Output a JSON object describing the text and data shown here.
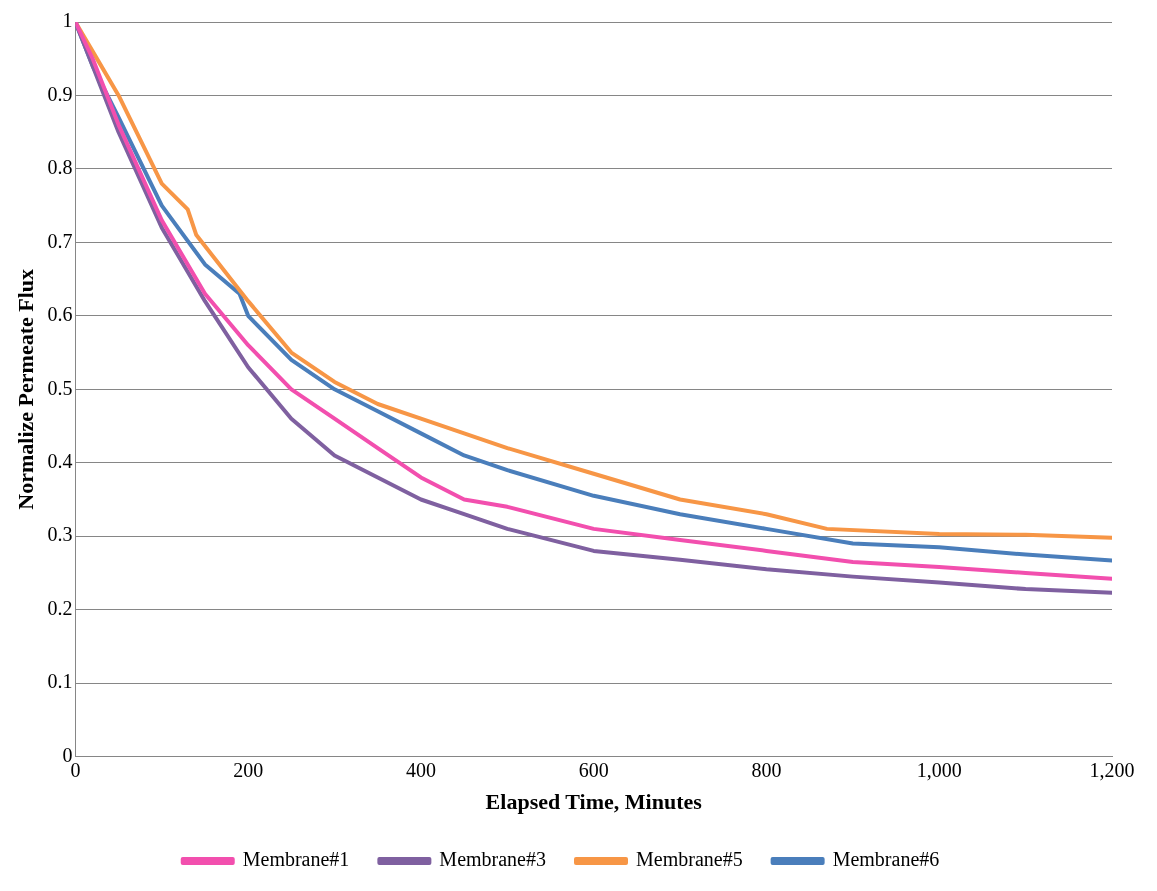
{
  "chart_data": {
    "type": "line",
    "xlabel": "Elapsed Time, Minutes",
    "ylabel": "Normalize Permeate Flux",
    "xlim": [
      0,
      1200
    ],
    "xticks": [
      0,
      200,
      400,
      600,
      800,
      {
        "value": 1000,
        "label": "1,000"
      },
      {
        "value": 1200,
        "label": "1,200"
      }
    ],
    "ylim": [
      0,
      1
    ],
    "yticks": [
      0,
      0.1,
      0.2,
      0.3,
      0.4,
      0.5,
      0.6,
      0.7,
      0.8,
      0.9,
      1
    ],
    "grid": "y",
    "legend": "bottom",
    "marker": "none",
    "line_style": "solid",
    "series": [
      {
        "name": "Membrane#1",
        "color": "#f24fae",
        "x": [
          0,
          20,
          50,
          100,
          150,
          200,
          250,
          300,
          350,
          400,
          450,
          500,
          600,
          700,
          800,
          900,
          1000,
          1100,
          1200
        ],
        "values": [
          1,
          0.95,
          0.86,
          0.73,
          0.63,
          0.56,
          0.5,
          0.46,
          0.42,
          0.38,
          0.35,
          0.34,
          0.31,
          0.295,
          0.28,
          0.265,
          0.258,
          0.25,
          0.242
        ]
      },
      {
        "name": "Membrane#3",
        "color": "#7f60a0",
        "x": [
          0,
          20,
          50,
          100,
          150,
          200,
          250,
          300,
          350,
          400,
          450,
          500,
          600,
          700,
          800,
          900,
          1000,
          1100,
          1200
        ],
        "values": [
          1,
          0.94,
          0.85,
          0.72,
          0.62,
          0.53,
          0.46,
          0.41,
          0.38,
          0.35,
          0.33,
          0.31,
          0.28,
          0.268,
          0.255,
          0.245,
          0.237,
          0.228,
          0.223
        ]
      },
      {
        "name": "Membrane#5",
        "color": "#f79646",
        "x": [
          0,
          20,
          50,
          100,
          130,
          140,
          200,
          250,
          300,
          350,
          400,
          450,
          500,
          600,
          700,
          800,
          870,
          1000,
          1100,
          1200
        ],
        "values": [
          1,
          0.96,
          0.9,
          0.78,
          0.745,
          0.71,
          0.62,
          0.55,
          0.51,
          0.48,
          0.46,
          0.44,
          0.42,
          0.385,
          0.35,
          0.33,
          0.31,
          0.303,
          0.302,
          0.298
        ]
      },
      {
        "name": "Membrane#6",
        "color": "#4a7ebb",
        "x": [
          0,
          20,
          50,
          100,
          150,
          190,
          200,
          250,
          300,
          350,
          400,
          450,
          500,
          600,
          700,
          800,
          900,
          1000,
          1100,
          1200
        ],
        "values": [
          1,
          0.94,
          0.87,
          0.75,
          0.67,
          0.63,
          0.6,
          0.54,
          0.5,
          0.47,
          0.44,
          0.41,
          0.39,
          0.355,
          0.33,
          0.31,
          0.29,
          0.285,
          0.275,
          0.267
        ]
      }
    ]
  }
}
